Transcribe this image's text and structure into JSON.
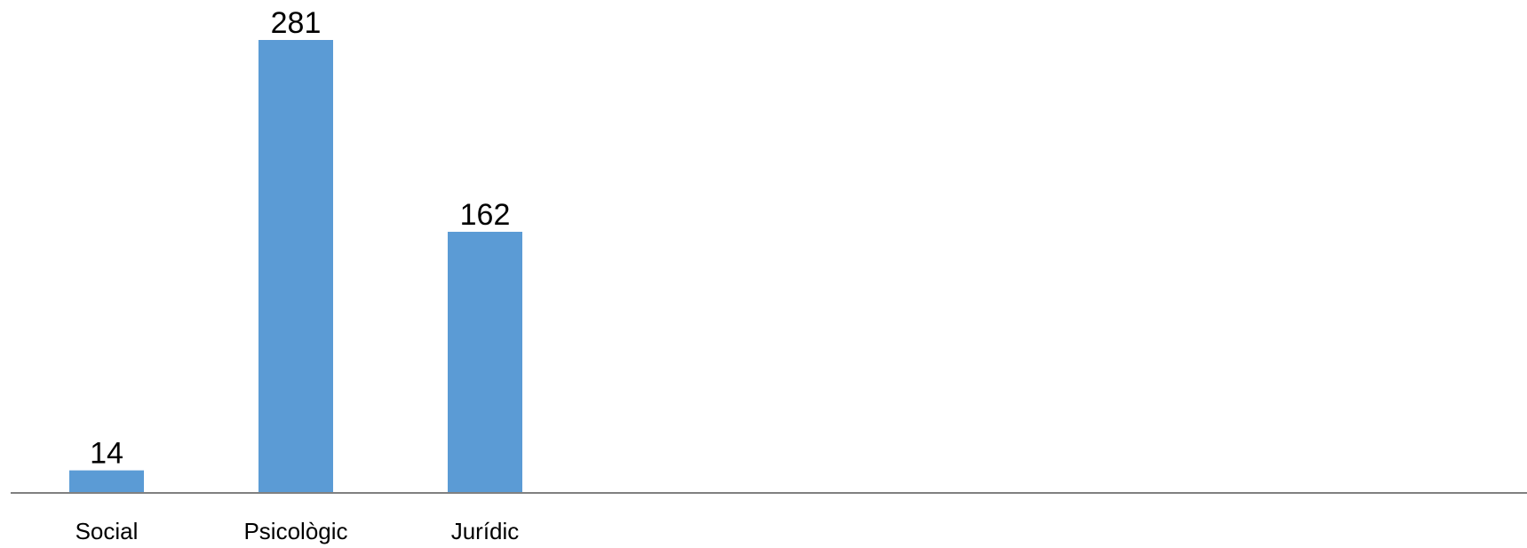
{
  "chart_data": {
    "type": "bar",
    "categories": [
      "Social",
      "Psicològic",
      "Jurídic"
    ],
    "values": [
      14,
      281,
      162
    ],
    "title": "",
    "xlabel": "",
    "ylabel": "",
    "ylim": [
      0,
      281
    ],
    "grid": false,
    "legend": "none",
    "colors": {
      "bar": "#5B9BD5",
      "axis": "#808080",
      "text": "#000000"
    }
  }
}
